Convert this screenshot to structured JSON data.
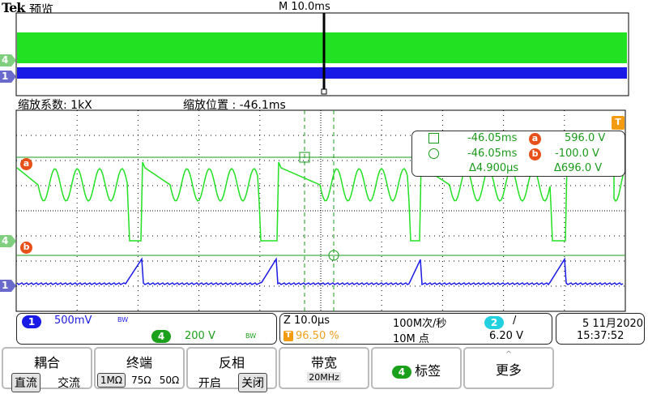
{
  "header": {
    "brand": "Tek",
    "mode": "预览",
    "timebase": "M 10.0ms"
  },
  "overview": {
    "ch4_marker": "4",
    "ch1_marker": "1",
    "trigger_marker": "T",
    "colors": {
      "ch4": "#22e022",
      "ch1": "#1a1ae6"
    }
  },
  "zoom": {
    "factor_label": "缩放系数: 1kX",
    "position_label": "缩放位置 : -46.1ms"
  },
  "main": {
    "ch4_marker": "4",
    "ch1_marker": "1",
    "cursor_a": "a",
    "cursor_b": "b",
    "trigger_marker": "T"
  },
  "readout": {
    "row1": {
      "time": "-46.05ms",
      "marker": "a",
      "value": "596.0 V"
    },
    "row2": {
      "time": "-46.05ms",
      "marker": "b",
      "value": "-100.0 V"
    },
    "delta": {
      "time": "Δ4.900µs",
      "value": "Δ696.0 V"
    }
  },
  "status": {
    "ch1": {
      "num": "1",
      "scale": "500mV",
      "bw": "BW",
      "color": "#1a1ae6"
    },
    "ch4": {
      "num": "4",
      "scale": "200 V",
      "bw": "BW",
      "color": "#1aa01a"
    },
    "zoom_time": "Z 10.0µs",
    "trigger_pos": "96.50 %",
    "trigger_icon": "T",
    "sample_rate": "100M次/秒",
    "record_length": "10M 点",
    "trig_source": "2",
    "trig_slope": "/",
    "trig_level": "6.20 V",
    "date": "5 11月2020",
    "time": "15:37:52"
  },
  "buttons": {
    "coupling": {
      "title": "耦合",
      "opt1": "直流",
      "opt2": "交流"
    },
    "termination": {
      "title": "终端",
      "opt1": "1MΩ",
      "opt2": "75Ω",
      "opt3": "50Ω"
    },
    "invert": {
      "title": "反相",
      "opt1": "开启",
      "opt2": "关闭"
    },
    "bandwidth": {
      "title": "带宽",
      "value": "20MHz"
    },
    "label": {
      "ch": "4",
      "title": "标签"
    },
    "more": {
      "title": "更多"
    }
  }
}
